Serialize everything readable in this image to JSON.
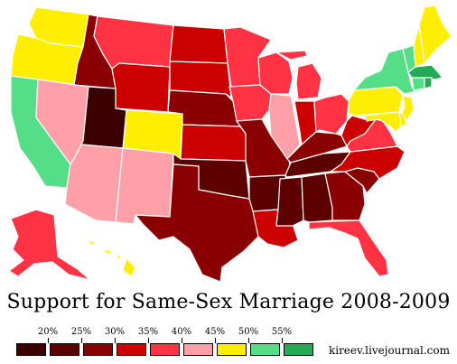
{
  "title": "Support for Same-Sex Marriage 2008-2009",
  "credit": "kireev.livejournal.com",
  "legend": {
    "ticks": [
      "20%",
      "25%",
      "30%",
      "35%",
      "40%",
      "45%",
      "50%",
      "55%"
    ],
    "colors": [
      "#3d0000",
      "#5c0000",
      "#8a0000",
      "#cc0000",
      "#ff3344",
      "#ffa0a8",
      "#ffee00",
      "#55dd88",
      "#22aa55"
    ]
  },
  "states": {
    "WA": "#ffee00",
    "OR": "#ffee00",
    "CA": "#55dd88",
    "NV": "#ffa0a8",
    "ID": "#8a0000",
    "MT": "#ff3344",
    "WY": "#cc0000",
    "UT": "#3d0000",
    "CO": "#ffee00",
    "AZ": "#ffa0a8",
    "NM": "#ffa0a8",
    "ND": "#cc0000",
    "SD": "#cc0000",
    "NE": "#8a0000",
    "KS": "#cc0000",
    "OK": "#5c0000",
    "TX": "#8a0000",
    "MN": "#ff3344",
    "IA": "#ff3344",
    "MO": "#8a0000",
    "AR": "#5c0000",
    "LA": "#cc0000",
    "WI": "#ff3344",
    "IL": "#ffa0a8",
    "MI": "#ff3344",
    "IN": "#cc0000",
    "OH": "#ff3344",
    "KY": "#8a0000",
    "TN": "#5c0000",
    "MS": "#5c0000",
    "AL": "#5c0000",
    "GA": "#8a0000",
    "FL": "#ff3344",
    "SC": "#8a0000",
    "NC": "#cc0000",
    "VA": "#ff3344",
    "WV": "#cc0000",
    "PA": "#ffee00",
    "NY": "#55dd88",
    "VT": "#55dd88",
    "NH": "#ffee00",
    "ME": "#ffee00",
    "MA": "#22aa55",
    "CT": "#55dd88",
    "RI": "#22aa55",
    "NJ": "#ffee00",
    "DE": "#ffee00",
    "MD": "#ffee00",
    "AK": "#ff3344",
    "HI": "#ffee00"
  }
}
